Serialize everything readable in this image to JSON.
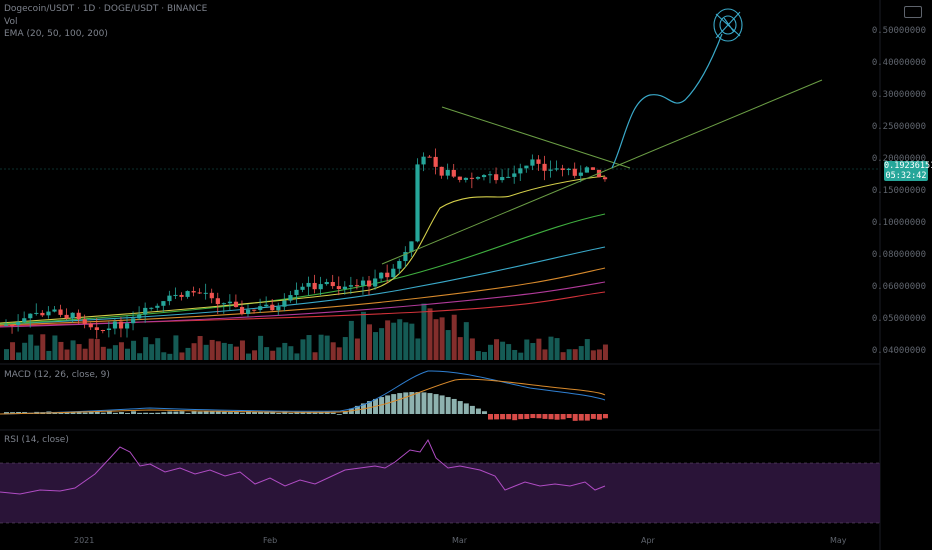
{
  "header": {
    "title": "Dogecoin/USDT · 1D · DOGE/USDT · BINANCE",
    "vol_label": "Vol",
    "ema_label": "EMA (20, 50, 100, 200)"
  },
  "macd_label": "MACD (12, 26, close, 9)",
  "rsi_label": "RSI (14, close)",
  "price_tag": {
    "price": "0.19236151",
    "countdown": "05:32:42"
  },
  "colors": {
    "up": "#26a69a",
    "down": "#ef5350",
    "ema20": "#d4cf4a",
    "ema50": "#3fae3f",
    "ema100": "#3aa9c9",
    "ema150": "#d88a2c",
    "ema200": "#b03a9a",
    "ema250": "#d2323a",
    "trendline": "#6b9e45",
    "projection": "#3aa9c9",
    "rsi": "#b04cc4",
    "rsi_band": "#2a1438"
  },
  "chart_data": {
    "type": "candlestick",
    "title": "Dogecoin/USDT",
    "interval": "1D",
    "exchange": "BINANCE",
    "current_price": 0.19236151,
    "countdown": "05:32:42",
    "indicators": [
      "Volume",
      "EMA 20",
      "EMA 50",
      "EMA 100",
      "EMA 200",
      "MACD",
      "RSI 14"
    ],
    "candles_note": "approximate prices read off the right axis",
    "closes": [
      0.03,
      0.031,
      0.03,
      0.032,
      0.033,
      0.031,
      0.034,
      0.04,
      0.045,
      0.052,
      0.06,
      0.075,
      0.09,
      0.12,
      0.175,
      0.165,
      0.19,
      0.21,
      0.2,
      0.192
    ],
    "rsi_levels": [
      30,
      70
    ],
    "patterns": [
      "symmetrical triangle",
      "ascending trendline",
      "hand-drawn upside projection"
    ]
  },
  "ticks": [
    "0.50000000",
    "0.40000000",
    "0.30000000",
    "0.25000000",
    "0.20000000",
    "0.15000000",
    "0.10000000",
    "0.08000000",
    "0.06000000",
    "0.05000000",
    "0.04000000"
  ],
  "time_labels": [
    "2021",
    "",
    "",
    "Feb",
    "",
    "",
    "Mar",
    "",
    "",
    "Apr",
    "",
    "",
    "May"
  ]
}
